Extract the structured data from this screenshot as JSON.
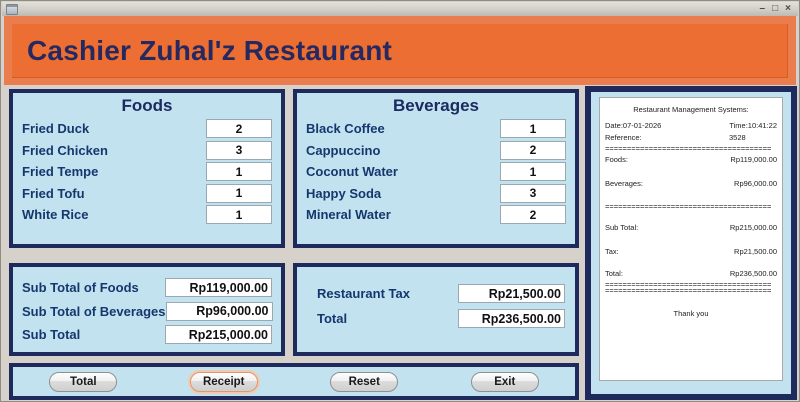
{
  "window": {
    "controls": {
      "minimize": "–",
      "maximize": "□",
      "close": "×"
    }
  },
  "header": {
    "title": "Cashier Zuhal'z Restaurant"
  },
  "foods": {
    "title": "Foods",
    "items": [
      {
        "label": "Fried Duck",
        "qty": "2"
      },
      {
        "label": "Fried Chicken",
        "qty": "3"
      },
      {
        "label": "Fried Tempe",
        "qty": "1"
      },
      {
        "label": "Fried Tofu",
        "qty": "1"
      },
      {
        "label": "White Rice",
        "qty": "1"
      }
    ]
  },
  "beverages": {
    "title": "Beverages",
    "items": [
      {
        "label": "Black Coffee",
        "qty": "1"
      },
      {
        "label": "Cappuccino",
        "qty": "2"
      },
      {
        "label": "Coconut Water",
        "qty": "1"
      },
      {
        "label": "Happy Soda",
        "qty": "3"
      },
      {
        "label": "Mineral Water",
        "qty": "2"
      }
    ]
  },
  "subtotals": {
    "rows": [
      {
        "label": "Sub Total of Foods",
        "value": "Rp119,000.00"
      },
      {
        "label": "Sub Total of Beverages",
        "value": "Rp96,000.00"
      },
      {
        "label": "Sub Total",
        "value": "Rp215,000.00"
      }
    ]
  },
  "tax_panel": {
    "rows": [
      {
        "label": "Restaurant Tax",
        "value": "Rp21,500.00"
      },
      {
        "label": "Total",
        "value": "Rp236,500.00"
      }
    ]
  },
  "receipt": {
    "header": "Restaurant Management Systems:",
    "date_label": "Date:07-01-2026",
    "time_label": "Time:10:41:22",
    "reference_label": "Reference:",
    "reference_value": "3528",
    "separator": "======================================",
    "lines": [
      {
        "label": "Foods:",
        "value": "Rp119,000.00"
      },
      {
        "label": "Beverages:",
        "value": "Rp96,000.00"
      }
    ],
    "totals": [
      {
        "label": "Sub Total:",
        "value": "Rp215,000.00"
      },
      {
        "label": "Tax:",
        "value": "Rp21,500.00"
      },
      {
        "label": "Total:",
        "value": "Rp236,500.00"
      }
    ],
    "footer": "Thank you"
  },
  "buttons": [
    {
      "label": "Total"
    },
    {
      "label": "Receipt"
    },
    {
      "label": "Reset"
    },
    {
      "label": "Exit"
    }
  ],
  "colors": {
    "accent_orange_outer": "#e97d4d",
    "accent_orange_inner": "#ec6e33",
    "navy_border": "#1f2a5c",
    "panel_blue": "#c3e2f0",
    "label_navy": "#14386d",
    "window_gray": "#d6d2cb"
  }
}
